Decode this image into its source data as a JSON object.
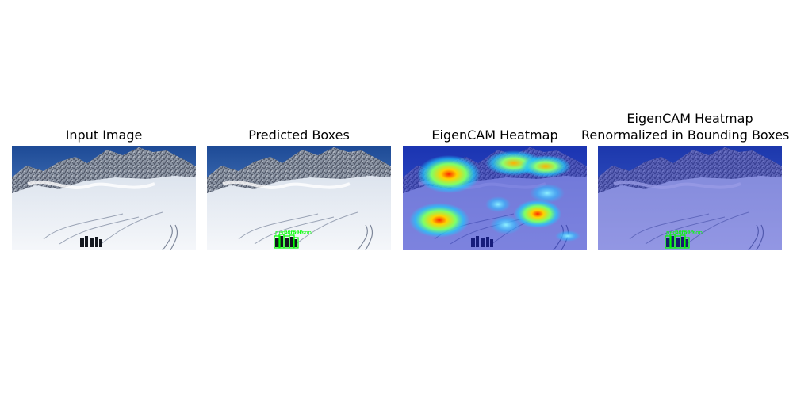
{
  "panels": [
    {
      "title": "Input Image"
    },
    {
      "title": "Predicted Boxes",
      "box_label": "person"
    },
    {
      "title": "EigenCAM Heatmap"
    },
    {
      "title_line1": "EigenCAM Heatmap",
      "title_line2": "Renormalized in Bounding Boxes",
      "box_label": "person"
    }
  ],
  "colors": {
    "sky_top": "#1f4f9c",
    "sky_bottom": "#5a8fd0",
    "snow": "#eef2f7",
    "rock": "#6f7888",
    "box": "#00ff00",
    "overlay_blue": "#1018c8"
  }
}
